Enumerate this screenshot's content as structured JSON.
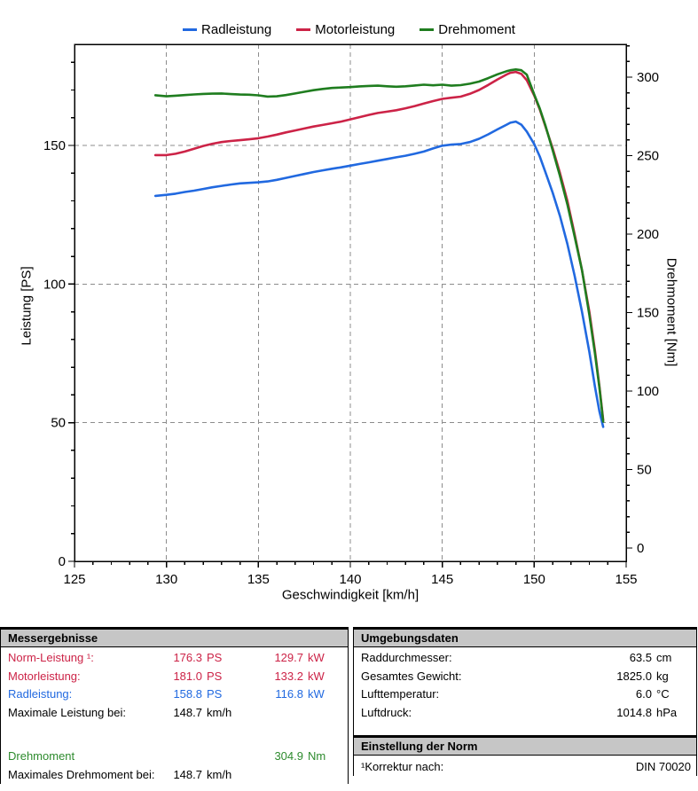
{
  "palette": {
    "red": "#cc2347",
    "blue": "#2169e0",
    "green": "#2e8b2e",
    "black": "#000000"
  },
  "chart_data": {
    "type": "line",
    "title": "",
    "xlabel": "Geschwindigkeit [km/h]",
    "ylabel_left": "Leistung [PS]",
    "ylabel_right": "Drehmoment [Nm]",
    "legend_position": "top",
    "grid": true,
    "grid_color": "#8c8c8c",
    "axis_color": "#000000",
    "x_axis": {
      "min": 125,
      "max": 155,
      "major": 5,
      "minor": 1,
      "tick_labels": [
        "125",
        "130",
        "135",
        "140",
        "145",
        "150",
        "155"
      ]
    },
    "y_left": {
      "min": 0,
      "max": 187,
      "major": 50,
      "minor": 10,
      "tick_labels": [
        "0",
        "50",
        "100",
        "150"
      ]
    },
    "y_right": {
      "min": 0,
      "max": 322,
      "major": 50,
      "minor": 10,
      "tick_labels": [
        "0",
        "50",
        "100",
        "150",
        "200",
        "250",
        "300"
      ]
    },
    "x": [
      129.4,
      130,
      130.5,
      131,
      131.5,
      132,
      132.5,
      133,
      133.5,
      134,
      134.5,
      135,
      135.5,
      136,
      136.5,
      137,
      137.5,
      138,
      138.5,
      139,
      139.5,
      140,
      140.5,
      141,
      141.5,
      142,
      142.5,
      143,
      143.5,
      144,
      144.5,
      145,
      145.5,
      146,
      146.5,
      147,
      147.5,
      148,
      148.5,
      148.7,
      149,
      149.3,
      149.6,
      150,
      150.3,
      150.6,
      151,
      151.4,
      151.8,
      152.2,
      152.6,
      153,
      153.3,
      153.55,
      153.75
    ],
    "series": [
      {
        "name": "Radleistung",
        "axis": "left",
        "color": "#2169e0",
        "unit": "PS",
        "values": [
          131.8,
          132.2,
          132.6,
          133.2,
          133.7,
          134.3,
          134.9,
          135.4,
          135.9,
          136.3,
          136.5,
          136.7,
          137.0,
          137.6,
          138.3,
          139.0,
          139.7,
          140.4,
          141.0,
          141.6,
          142.1,
          142.7,
          143.3,
          143.9,
          144.5,
          145.1,
          145.7,
          146.3,
          147.0,
          147.8,
          148.9,
          149.9,
          150.3,
          150.5,
          151.2,
          152.4,
          154.0,
          155.8,
          157.5,
          158.2,
          158.6,
          157.5,
          155.0,
          150.5,
          146.0,
          140.5,
          133.0,
          124.5,
          114.5,
          103.0,
          90.0,
          75.5,
          63.0,
          54.0,
          48.5
        ]
      },
      {
        "name": "Motorleistung",
        "axis": "left",
        "color": "#cc2347",
        "unit": "PS",
        "values": [
          146.5,
          146.5,
          147.0,
          147.8,
          148.8,
          149.8,
          150.6,
          151.2,
          151.6,
          151.9,
          152.2,
          152.6,
          153.2,
          153.9,
          154.7,
          155.4,
          156.1,
          156.8,
          157.4,
          158.0,
          158.6,
          159.4,
          160.2,
          161.0,
          161.7,
          162.2,
          162.7,
          163.4,
          164.2,
          165.1,
          166.0,
          166.8,
          167.2,
          167.6,
          168.6,
          170.0,
          171.8,
          173.8,
          175.6,
          176.2,
          176.5,
          175.8,
          173.5,
          168.0,
          163.0,
          157.0,
          149.0,
          140.0,
          130.0,
          118.0,
          105.0,
          90.0,
          76.0,
          63.0,
          51.0
        ]
      },
      {
        "name": "Drehmoment",
        "axis": "right",
        "color": "#1f7d1f",
        "unit": "Nm",
        "values": [
          288.5,
          287.8,
          288.2,
          288.6,
          289.0,
          289.3,
          289.5,
          289.6,
          289.2,
          288.9,
          288.8,
          288.4,
          287.6,
          287.8,
          288.6,
          289.6,
          290.7,
          291.7,
          292.5,
          293.1,
          293.4,
          293.7,
          294.1,
          294.4,
          294.6,
          294.2,
          293.9,
          294.2,
          294.7,
          295.2,
          294.8,
          295.2,
          294.6,
          294.9,
          295.8,
          297.2,
          299.4,
          301.8,
          303.8,
          304.4,
          304.9,
          304.4,
          301.5,
          289.0,
          280.0,
          269.5,
          253.5,
          237.0,
          219.0,
          198.5,
          177.0,
          148.5,
          124.0,
          102.0,
          80.5
        ]
      }
    ]
  },
  "results": {
    "title": "Messergebnisse",
    "rows": [
      {
        "label": "Norm-Leistung ¹:",
        "v1": "176.3",
        "u1": "PS",
        "v2": "129.7",
        "u2": "kW",
        "color": "red"
      },
      {
        "label": "Motorleistung:",
        "v1": "181.0",
        "u1": "PS",
        "v2": "133.2",
        "u2": "kW",
        "color": "red"
      },
      {
        "label": "Radleistung:",
        "v1": "158.8",
        "u1": "PS",
        "v2": "116.8",
        "u2": "kW",
        "color": "blue"
      },
      {
        "label": "Maximale Leistung bei:",
        "v1": "148.7",
        "u1": "km/h",
        "v2": "",
        "u2": "",
        "color": "black"
      },
      {
        "spacer": true
      },
      {
        "label": "Drehmoment",
        "v1": "",
        "u1": "",
        "v2": "304.9",
        "u2": "Nm",
        "color": "green"
      },
      {
        "label": "Maximales Drehmoment bei:",
        "v1": "148.7",
        "u1": "km/h",
        "v2": "",
        "u2": "",
        "color": "black"
      }
    ]
  },
  "environment": {
    "title": "Umgebungsdaten",
    "rows": [
      {
        "label": "Raddurchmesser:",
        "value": "63.5",
        "unit": "cm"
      },
      {
        "label": "Gesamtes Gewicht:",
        "value": "1825.0",
        "unit": "kg"
      },
      {
        "label": "Lufttemperatur:",
        "value": "6.0",
        "unit": "°C"
      },
      {
        "label": "Luftdruck:",
        "value": "1014.8",
        "unit": "hPa"
      }
    ]
  },
  "norm": {
    "title": "Einstellung der Norm",
    "rows": [
      {
        "label": "¹Korrektur nach:",
        "value": "DIN 70020"
      }
    ]
  }
}
